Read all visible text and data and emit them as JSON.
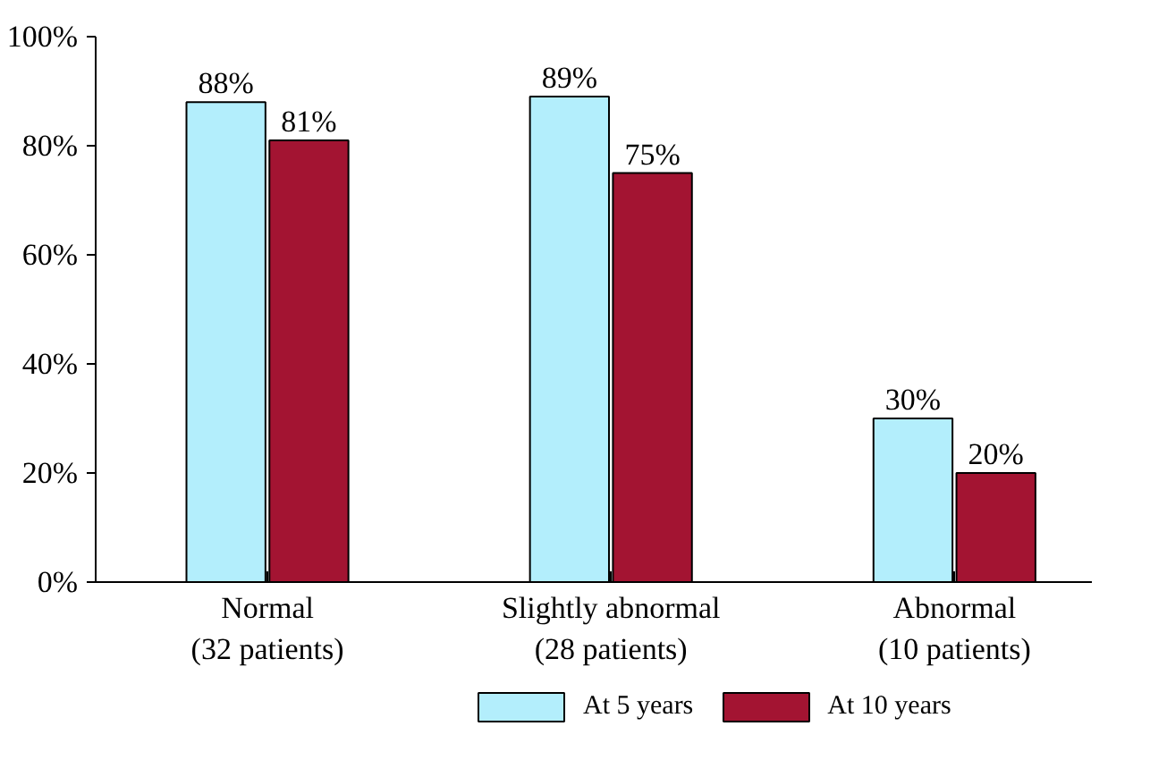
{
  "chart_data": {
    "type": "bar",
    "categories": [
      "Normal\n(32 patients)",
      "Slightly abnormal\n(28 patients)",
      "Abnormal\n(10 patients)"
    ],
    "series": [
      {
        "name": "At 5 years",
        "color": "#b3eefc",
        "values": [
          88,
          89,
          30
        ],
        "value_labels": [
          "88%",
          "89%",
          "30%"
        ]
      },
      {
        "name": "At 10 years",
        "color": "#a31432",
        "values": [
          81,
          75,
          20
        ],
        "value_labels": [
          "81%",
          "75%",
          "20%"
        ]
      }
    ],
    "ylim": [
      0,
      100
    ],
    "yticks": [
      {
        "value": 0,
        "label": "0%"
      },
      {
        "value": 20,
        "label": "20%"
      },
      {
        "value": 40,
        "label": "40%"
      },
      {
        "value": 60,
        "label": "60%"
      },
      {
        "value": 80,
        "label": "80%"
      },
      {
        "value": 100,
        "label": "100%"
      }
    ],
    "grid": false,
    "legend": "bottom"
  }
}
